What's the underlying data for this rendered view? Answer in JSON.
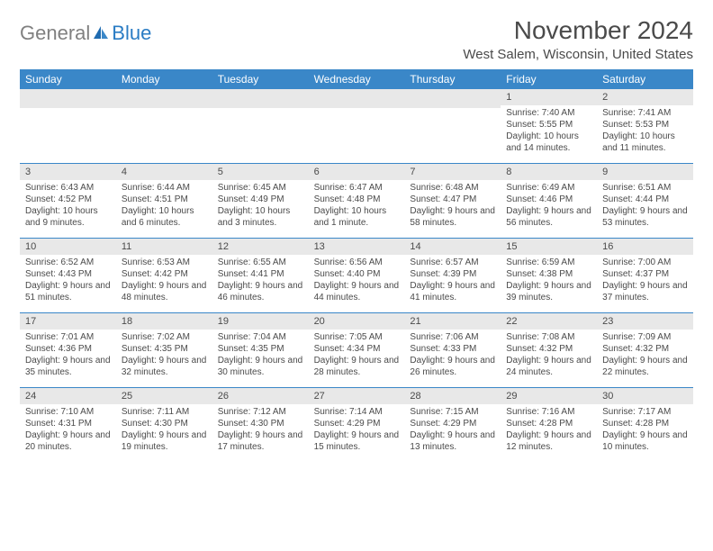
{
  "logo": {
    "text_gray": "General",
    "text_blue": "Blue"
  },
  "title": "November 2024",
  "location": "West Salem, Wisconsin, United States",
  "colors": {
    "header_bg": "#3a87c8",
    "header_text": "#ffffff",
    "daynum_bg": "#e8e8e8",
    "text": "#4a4a4a",
    "divider": "#3a87c8",
    "logo_gray": "#808080",
    "logo_blue": "#2a7cc4"
  },
  "day_names": [
    "Sunday",
    "Monday",
    "Tuesday",
    "Wednesday",
    "Thursday",
    "Friday",
    "Saturday"
  ],
  "weeks": [
    [
      {
        "n": "",
        "sr": "",
        "ss": "",
        "dl": ""
      },
      {
        "n": "",
        "sr": "",
        "ss": "",
        "dl": ""
      },
      {
        "n": "",
        "sr": "",
        "ss": "",
        "dl": ""
      },
      {
        "n": "",
        "sr": "",
        "ss": "",
        "dl": ""
      },
      {
        "n": "",
        "sr": "",
        "ss": "",
        "dl": ""
      },
      {
        "n": "1",
        "sr": "Sunrise: 7:40 AM",
        "ss": "Sunset: 5:55 PM",
        "dl": "Daylight: 10 hours and 14 minutes."
      },
      {
        "n": "2",
        "sr": "Sunrise: 7:41 AM",
        "ss": "Sunset: 5:53 PM",
        "dl": "Daylight: 10 hours and 11 minutes."
      }
    ],
    [
      {
        "n": "3",
        "sr": "Sunrise: 6:43 AM",
        "ss": "Sunset: 4:52 PM",
        "dl": "Daylight: 10 hours and 9 minutes."
      },
      {
        "n": "4",
        "sr": "Sunrise: 6:44 AM",
        "ss": "Sunset: 4:51 PM",
        "dl": "Daylight: 10 hours and 6 minutes."
      },
      {
        "n": "5",
        "sr": "Sunrise: 6:45 AM",
        "ss": "Sunset: 4:49 PM",
        "dl": "Daylight: 10 hours and 3 minutes."
      },
      {
        "n": "6",
        "sr": "Sunrise: 6:47 AM",
        "ss": "Sunset: 4:48 PM",
        "dl": "Daylight: 10 hours and 1 minute."
      },
      {
        "n": "7",
        "sr": "Sunrise: 6:48 AM",
        "ss": "Sunset: 4:47 PM",
        "dl": "Daylight: 9 hours and 58 minutes."
      },
      {
        "n": "8",
        "sr": "Sunrise: 6:49 AM",
        "ss": "Sunset: 4:46 PM",
        "dl": "Daylight: 9 hours and 56 minutes."
      },
      {
        "n": "9",
        "sr": "Sunrise: 6:51 AM",
        "ss": "Sunset: 4:44 PM",
        "dl": "Daylight: 9 hours and 53 minutes."
      }
    ],
    [
      {
        "n": "10",
        "sr": "Sunrise: 6:52 AM",
        "ss": "Sunset: 4:43 PM",
        "dl": "Daylight: 9 hours and 51 minutes."
      },
      {
        "n": "11",
        "sr": "Sunrise: 6:53 AM",
        "ss": "Sunset: 4:42 PM",
        "dl": "Daylight: 9 hours and 48 minutes."
      },
      {
        "n": "12",
        "sr": "Sunrise: 6:55 AM",
        "ss": "Sunset: 4:41 PM",
        "dl": "Daylight: 9 hours and 46 minutes."
      },
      {
        "n": "13",
        "sr": "Sunrise: 6:56 AM",
        "ss": "Sunset: 4:40 PM",
        "dl": "Daylight: 9 hours and 44 minutes."
      },
      {
        "n": "14",
        "sr": "Sunrise: 6:57 AM",
        "ss": "Sunset: 4:39 PM",
        "dl": "Daylight: 9 hours and 41 minutes."
      },
      {
        "n": "15",
        "sr": "Sunrise: 6:59 AM",
        "ss": "Sunset: 4:38 PM",
        "dl": "Daylight: 9 hours and 39 minutes."
      },
      {
        "n": "16",
        "sr": "Sunrise: 7:00 AM",
        "ss": "Sunset: 4:37 PM",
        "dl": "Daylight: 9 hours and 37 minutes."
      }
    ],
    [
      {
        "n": "17",
        "sr": "Sunrise: 7:01 AM",
        "ss": "Sunset: 4:36 PM",
        "dl": "Daylight: 9 hours and 35 minutes."
      },
      {
        "n": "18",
        "sr": "Sunrise: 7:02 AM",
        "ss": "Sunset: 4:35 PM",
        "dl": "Daylight: 9 hours and 32 minutes."
      },
      {
        "n": "19",
        "sr": "Sunrise: 7:04 AM",
        "ss": "Sunset: 4:35 PM",
        "dl": "Daylight: 9 hours and 30 minutes."
      },
      {
        "n": "20",
        "sr": "Sunrise: 7:05 AM",
        "ss": "Sunset: 4:34 PM",
        "dl": "Daylight: 9 hours and 28 minutes."
      },
      {
        "n": "21",
        "sr": "Sunrise: 7:06 AM",
        "ss": "Sunset: 4:33 PM",
        "dl": "Daylight: 9 hours and 26 minutes."
      },
      {
        "n": "22",
        "sr": "Sunrise: 7:08 AM",
        "ss": "Sunset: 4:32 PM",
        "dl": "Daylight: 9 hours and 24 minutes."
      },
      {
        "n": "23",
        "sr": "Sunrise: 7:09 AM",
        "ss": "Sunset: 4:32 PM",
        "dl": "Daylight: 9 hours and 22 minutes."
      }
    ],
    [
      {
        "n": "24",
        "sr": "Sunrise: 7:10 AM",
        "ss": "Sunset: 4:31 PM",
        "dl": "Daylight: 9 hours and 20 minutes."
      },
      {
        "n": "25",
        "sr": "Sunrise: 7:11 AM",
        "ss": "Sunset: 4:30 PM",
        "dl": "Daylight: 9 hours and 19 minutes."
      },
      {
        "n": "26",
        "sr": "Sunrise: 7:12 AM",
        "ss": "Sunset: 4:30 PM",
        "dl": "Daylight: 9 hours and 17 minutes."
      },
      {
        "n": "27",
        "sr": "Sunrise: 7:14 AM",
        "ss": "Sunset: 4:29 PM",
        "dl": "Daylight: 9 hours and 15 minutes."
      },
      {
        "n": "28",
        "sr": "Sunrise: 7:15 AM",
        "ss": "Sunset: 4:29 PM",
        "dl": "Daylight: 9 hours and 13 minutes."
      },
      {
        "n": "29",
        "sr": "Sunrise: 7:16 AM",
        "ss": "Sunset: 4:28 PM",
        "dl": "Daylight: 9 hours and 12 minutes."
      },
      {
        "n": "30",
        "sr": "Sunrise: 7:17 AM",
        "ss": "Sunset: 4:28 PM",
        "dl": "Daylight: 9 hours and 10 minutes."
      }
    ]
  ]
}
